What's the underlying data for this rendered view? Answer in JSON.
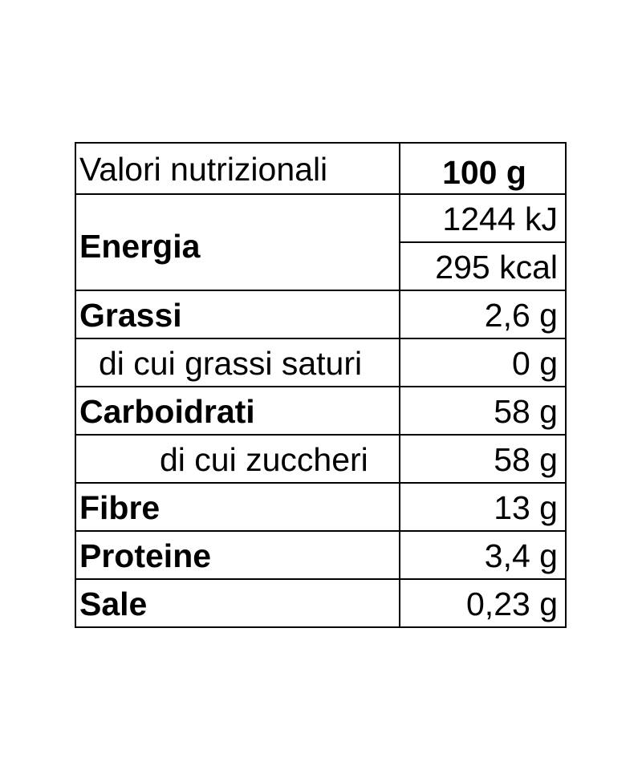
{
  "header": {
    "label": "Valori nutrizionali",
    "per": "100 g"
  },
  "energy": {
    "label": "Energia",
    "kj": "1244 kJ",
    "kcal": "295 kcal"
  },
  "rows": [
    {
      "label": "Grassi",
      "value": "2,6 g",
      "bold": true
    },
    {
      "label": "di cui grassi saturi",
      "value": "0 g",
      "bold": false
    },
    {
      "label": "Carboidrati",
      "value": "58 g",
      "bold": true
    },
    {
      "label": "di cui zuccheri",
      "value": "58 g",
      "bold": false
    },
    {
      "label": "Fibre",
      "value": "13 g",
      "bold": true
    },
    {
      "label": "Proteine",
      "value": "3,4 g",
      "bold": true
    },
    {
      "label": "Sale",
      "value": "0,23 g",
      "bold": true
    }
  ]
}
